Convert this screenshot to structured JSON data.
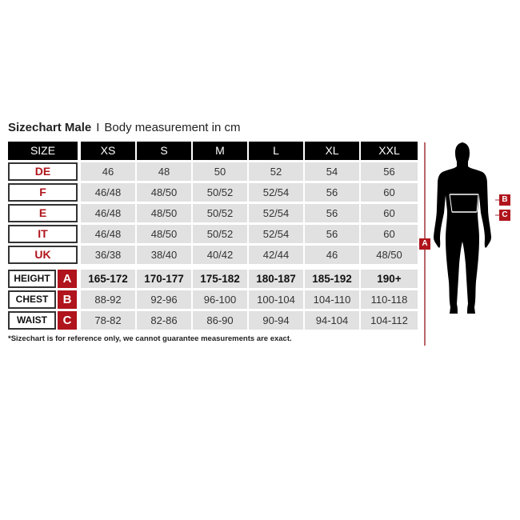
{
  "title": {
    "bold": "Sizechart Male",
    "separator": "I",
    "subtitle": "Body measurement in cm"
  },
  "header": {
    "size_label": "SIZE",
    "sizes": [
      "XS",
      "S",
      "M",
      "L",
      "XL",
      "XXL"
    ]
  },
  "country_rows": [
    {
      "label": "DE",
      "values": [
        "46",
        "48",
        "50",
        "52",
        "54",
        "56"
      ]
    },
    {
      "label": "F",
      "values": [
        "46/48",
        "48/50",
        "50/52",
        "52/54",
        "56",
        "60"
      ]
    },
    {
      "label": "E",
      "values": [
        "46/48",
        "48/50",
        "50/52",
        "52/54",
        "56",
        "60"
      ]
    },
    {
      "label": "IT",
      "values": [
        "46/48",
        "48/50",
        "50/52",
        "52/54",
        "56",
        "60"
      ]
    },
    {
      "label": "UK",
      "values": [
        "36/38",
        "38/40",
        "40/42",
        "42/44",
        "46",
        "48/50"
      ]
    }
  ],
  "measure_rows": [
    {
      "label": "HEIGHT",
      "badge": "A",
      "values": [
        "165-172",
        "170-177",
        "175-182",
        "180-187",
        "185-192",
        "190+"
      ]
    },
    {
      "label": "CHEST",
      "badge": "B",
      "values": [
        "88-92",
        "92-96",
        "96-100",
        "100-104",
        "104-110",
        "110-118"
      ]
    },
    {
      "label": "WAIST",
      "badge": "C",
      "values": [
        "78-82",
        "82-86",
        "86-90",
        "90-94",
        "94-104",
        "104-112"
      ]
    }
  ],
  "footnote": "*Sizechart is for reference only, we cannot guarantee measurements are exact.",
  "figure": {
    "height_badge": "A",
    "chest_badge": "B",
    "waist_badge": "C"
  },
  "colors": {
    "accent": "#b0141c",
    "header_bg": "#000000",
    "cell_bg": "#e1e1e1"
  }
}
